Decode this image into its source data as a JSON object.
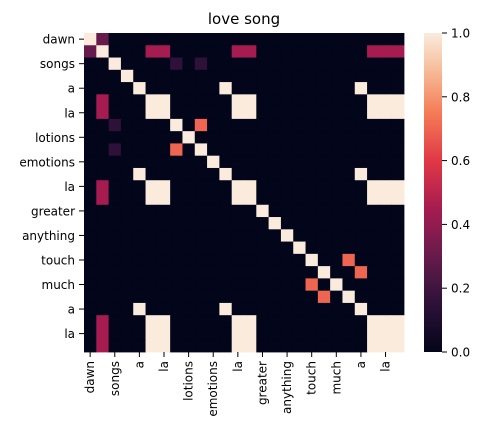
{
  "chart_data": {
    "type": "heatmap",
    "title": "love song",
    "rows": [
      "dawn",
      "",
      "songs",
      "",
      "a",
      "",
      "la",
      "",
      "lotions",
      "",
      "emotions",
      "",
      "la",
      "",
      "greater",
      "",
      "anything",
      "",
      "touch",
      "",
      "much",
      "",
      "a",
      "",
      "la",
      ""
    ],
    "columns": [
      "dawn",
      "",
      "songs",
      "",
      "a",
      "",
      "la",
      "",
      "lotions",
      "",
      "emotions",
      "",
      "la",
      "",
      "greater",
      "",
      "anything",
      "",
      "touch",
      "",
      "much",
      "",
      "a",
      "",
      "la",
      ""
    ],
    "ytick_labels": [
      "dawn",
      "songs",
      "a",
      "la",
      "lotions",
      "emotions",
      "la",
      "greater",
      "anything",
      "touch",
      "much",
      "a",
      "la"
    ],
    "xtick_labels": [
      "dawn",
      "songs",
      "a",
      "la",
      "lotions",
      "emotions",
      "la",
      "greater",
      "anything",
      "touch",
      "much",
      "a",
      "la"
    ],
    "colorbar": {
      "min": 0.0,
      "max": 1.0,
      "ticks": [
        "0.0",
        "0.2",
        "0.4",
        "0.6",
        "0.8",
        "1.0"
      ]
    },
    "colormap": "rocket",
    "values": [
      [
        1,
        0.3,
        0,
        0,
        0,
        0,
        0,
        0,
        0,
        0,
        0,
        0,
        0,
        0,
        0,
        0,
        0,
        0,
        0,
        0,
        0,
        0,
        0,
        0,
        0,
        0
      ],
      [
        0.3,
        1,
        0,
        0,
        0,
        0.45,
        0.45,
        0,
        0,
        0,
        0,
        0,
        0.45,
        0.45,
        0,
        0,
        0,
        0,
        0,
        0,
        0,
        0,
        0,
        0.45,
        0.45,
        0.45
      ],
      [
        0,
        0,
        1,
        0,
        0,
        0,
        0,
        0.15,
        0,
        0.15,
        0,
        0,
        0,
        0,
        0,
        0,
        0,
        0,
        0,
        0,
        0,
        0,
        0,
        0,
        0,
        0
      ],
      [
        0,
        0,
        0,
        1,
        0,
        0,
        0,
        0,
        0,
        0,
        0,
        0,
        0,
        0,
        0,
        0,
        0,
        0,
        0,
        0,
        0,
        0,
        0,
        0,
        0,
        0
      ],
      [
        0,
        0,
        0,
        0,
        1,
        0,
        0,
        0,
        0,
        0,
        0,
        1,
        0,
        0,
        0,
        0,
        0,
        0,
        0,
        0,
        0,
        0,
        1,
        0,
        0,
        0
      ],
      [
        0,
        0.45,
        0,
        0,
        0,
        1,
        1,
        0,
        0,
        0,
        0,
        0,
        1,
        1,
        0,
        0,
        0,
        0,
        0,
        0,
        0,
        0,
        0,
        1,
        1,
        1
      ],
      [
        0,
        0.45,
        0,
        0,
        0,
        1,
        1,
        0,
        0,
        0,
        0,
        0,
        1,
        1,
        0,
        0,
        0,
        0,
        0,
        0,
        0,
        0,
        0,
        1,
        1,
        1
      ],
      [
        0,
        0,
        0.15,
        0,
        0,
        0,
        0,
        1,
        0,
        0.7,
        0,
        0,
        0,
        0,
        0,
        0,
        0,
        0,
        0,
        0,
        0,
        0,
        0,
        0,
        0,
        0
      ],
      [
        0,
        0,
        0,
        0,
        0,
        0,
        0,
        0,
        1,
        0,
        0,
        0,
        0,
        0,
        0,
        0,
        0,
        0,
        0,
        0,
        0,
        0,
        0,
        0,
        0,
        0
      ],
      [
        0,
        0,
        0.15,
        0,
        0,
        0,
        0,
        0.7,
        0,
        1,
        0,
        0,
        0,
        0,
        0,
        0,
        0,
        0,
        0,
        0,
        0,
        0,
        0,
        0,
        0,
        0
      ],
      [
        0,
        0,
        0,
        0,
        0,
        0,
        0,
        0,
        0,
        0,
        1,
        0,
        0,
        0,
        0,
        0,
        0,
        0,
        0,
        0,
        0,
        0,
        0,
        0,
        0,
        0
      ],
      [
        0,
        0,
        0,
        0,
        1,
        0,
        0,
        0,
        0,
        0,
        0,
        1,
        0,
        0,
        0,
        0,
        0,
        0,
        0,
        0,
        0,
        0,
        1,
        0,
        0,
        0
      ],
      [
        0,
        0.45,
        0,
        0,
        0,
        1,
        1,
        0,
        0,
        0,
        0,
        0,
        1,
        1,
        0,
        0,
        0,
        0,
        0,
        0,
        0,
        0,
        0,
        1,
        1,
        1
      ],
      [
        0,
        0.45,
        0,
        0,
        0,
        1,
        1,
        0,
        0,
        0,
        0,
        0,
        1,
        1,
        0,
        0,
        0,
        0,
        0,
        0,
        0,
        0,
        0,
        1,
        1,
        1
      ],
      [
        0,
        0,
        0,
        0,
        0,
        0,
        0,
        0,
        0,
        0,
        0,
        0,
        0,
        0,
        1,
        0,
        0,
        0,
        0,
        0,
        0,
        0,
        0,
        0,
        0,
        0
      ],
      [
        0,
        0,
        0,
        0,
        0,
        0,
        0,
        0,
        0,
        0,
        0,
        0,
        0,
        0,
        0,
        1,
        0,
        0,
        0,
        0,
        0,
        0,
        0,
        0,
        0,
        0
      ],
      [
        0,
        0,
        0,
        0,
        0,
        0,
        0,
        0,
        0,
        0,
        0,
        0,
        0,
        0,
        0,
        0,
        1,
        0,
        0,
        0,
        0,
        0,
        0,
        0,
        0,
        0
      ],
      [
        0,
        0,
        0,
        0,
        0,
        0,
        0,
        0,
        0,
        0,
        0,
        0,
        0,
        0,
        0,
        0,
        0,
        1,
        0,
        0,
        0,
        0,
        0,
        0,
        0,
        0
      ],
      [
        0,
        0,
        0,
        0,
        0,
        0,
        0,
        0,
        0,
        0,
        0,
        0,
        0,
        0,
        0,
        0,
        0,
        0,
        1,
        0,
        0,
        0.7,
        0,
        0,
        0,
        0
      ],
      [
        0,
        0,
        0,
        0,
        0,
        0,
        0,
        0,
        0,
        0,
        0,
        0,
        0,
        0,
        0,
        0,
        0,
        0,
        0,
        1,
        0,
        0,
        0.7,
        0,
        0,
        0
      ],
      [
        0,
        0,
        0,
        0,
        0,
        0,
        0,
        0,
        0,
        0,
        0,
        0,
        0,
        0,
        0,
        0,
        0,
        0,
        0.7,
        0,
        1,
        0,
        0,
        0,
        0,
        0
      ],
      [
        0,
        0,
        0,
        0,
        0,
        0,
        0,
        0,
        0,
        0,
        0,
        0,
        0,
        0,
        0,
        0,
        0,
        0,
        0,
        0.7,
        0,
        1,
        0,
        0,
        0,
        0
      ],
      [
        0,
        0,
        0,
        0,
        1,
        0,
        0,
        0,
        0,
        0,
        0,
        1,
        0,
        0,
        0,
        0,
        0,
        0,
        0,
        0,
        0,
        0,
        1,
        0,
        0,
        0
      ],
      [
        0,
        0.45,
        0,
        0,
        0,
        1,
        1,
        0,
        0,
        0,
        0,
        0,
        1,
        1,
        0,
        0,
        0,
        0,
        0,
        0,
        0,
        0,
        0,
        1,
        1,
        1
      ],
      [
        0,
        0.45,
        0,
        0,
        0,
        1,
        1,
        0,
        0,
        0,
        0,
        0,
        1,
        1,
        0,
        0,
        0,
        0,
        0,
        0,
        0,
        0,
        0,
        1,
        1,
        1
      ],
      [
        0,
        0.45,
        0,
        0,
        0,
        1,
        1,
        0,
        0,
        0,
        0,
        0,
        1,
        1,
        0,
        0,
        0,
        0,
        0,
        0,
        0,
        0,
        0,
        1,
        1,
        1
      ]
    ]
  }
}
